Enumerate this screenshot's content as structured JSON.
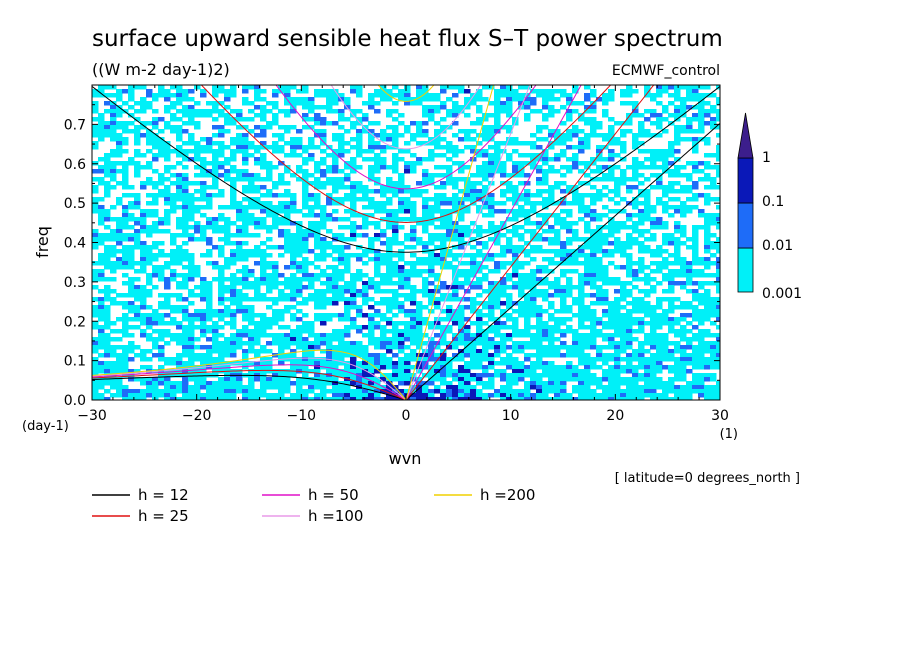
{
  "chart_data": {
    "type": "heatmap",
    "title": "surface upward sensible heat flux S–T power spectrum",
    "units": "((W m-2 day-1)2)",
    "source_label": "ECMWF_control",
    "xlabel": "wvn",
    "x_unit": "(1)",
    "ylabel": "freq",
    "y_unit": "(day-1)",
    "xlim": [
      -30,
      30
    ],
    "ylim": [
      0,
      0.8
    ],
    "x_ticks": [
      -30,
      -20,
      -10,
      0,
      10,
      20,
      30
    ],
    "y_ticks": [
      0.0,
      0.1,
      0.2,
      0.3,
      0.4,
      0.5,
      0.6,
      0.7
    ],
    "y_tick_labels": [
      "0.0",
      "0.1",
      "0.2",
      "0.3",
      "0.4",
      "0.5",
      "0.6",
      "0.7"
    ],
    "colorbar": {
      "levels": [
        "0.001",
        "0.01",
        "0.1",
        "1"
      ],
      "colors": [
        "#00f0f8",
        "#1e6cf8",
        "#0a18b8",
        "#3c1e8c"
      ]
    },
    "dispersion_curves": [
      {
        "label": "h = 12",
        "h": 12,
        "color": "#000000"
      },
      {
        "label": "h = 25",
        "h": 25,
        "color": "#e01010"
      },
      {
        "label": "h = 50",
        "h": 50,
        "color": "#e010c8"
      },
      {
        "label": "h =100",
        "h": 100,
        "color": "#e89ae8"
      },
      {
        "label": "h =200",
        "h": 200,
        "color": "#f0d000"
      }
    ],
    "annotation": "[ latitude=0 degrees_north ]"
  }
}
